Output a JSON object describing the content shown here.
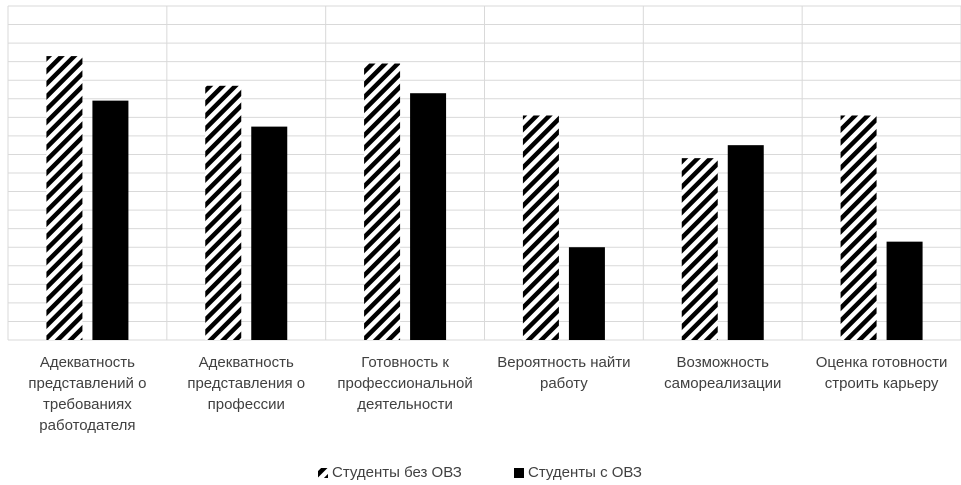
{
  "chart_data": {
    "type": "bar",
    "categories": [
      "Адекватность представлений о требованиях работодателя",
      "Адекватность представления о профессии",
      "Готовность к профессиональной деятельности",
      "Вероятность найти работу",
      "Возможность самореализации",
      "Оценка готовности строить карьеру"
    ],
    "series": [
      {
        "name": "Студенты без ОВЗ",
        "color": "#000000",
        "pattern": "hatch",
        "values": [
          15.3,
          13.7,
          14.9,
          12.1,
          9.8,
          12.1
        ]
      },
      {
        "name": "Студенты с ОВЗ",
        "color": "#000000",
        "pattern": "solid",
        "values": [
          12.9,
          11.5,
          13.3,
          5.0,
          10.5,
          5.3
        ]
      }
    ],
    "ylim": [
      0,
      18
    ],
    "yticks": [
      0,
      1,
      2,
      3,
      4,
      5,
      6,
      7,
      8,
      9,
      10,
      11,
      12,
      13,
      14,
      15,
      16,
      17,
      18
    ],
    "show_tick_labels": false,
    "grid": true,
    "legend": "bottom"
  }
}
